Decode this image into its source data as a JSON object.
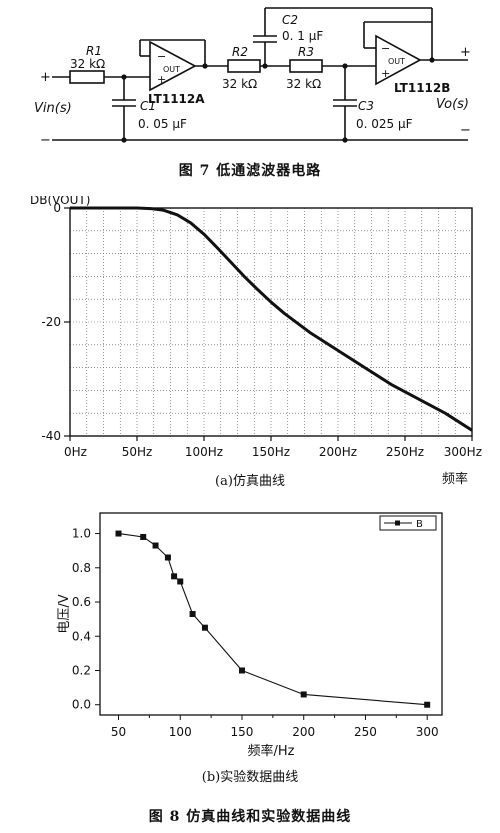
{
  "circuit": {
    "r1_name": "R1",
    "r1_value": "32 kΩ",
    "r2_name": "R2",
    "r2_value": "32 kΩ",
    "r3_name": "R3",
    "r3_value": "32 kΩ",
    "c1_name": "C1",
    "c1_value": "0. 05 μF",
    "c2_name": "C2",
    "c2_value": "0. 1 μF",
    "c3_name": "C3",
    "c3_value": "0. 025 μF",
    "opamp_a": "LT1112A",
    "opamp_b": "LT1112B",
    "out_label": "OUT",
    "vin": "Vin(s)",
    "vo": "Vo(s)",
    "plus": "+",
    "minus": "−"
  },
  "fig7_caption": "图 7   低通滤波器电路",
  "sim_caption": "(a)仿真曲线",
  "exp_caption": "(b)实验数据曲线",
  "fig8_caption": "图 8   仿真曲线和实验数据曲线",
  "chart_data": [
    {
      "type": "line",
      "ylabel": "DB(VOUT)",
      "xlabel": "频率",
      "x_ticks": [
        "0Hz",
        "50Hz",
        "100Hz",
        "150Hz",
        "200Hz",
        "250Hz",
        "300Hz"
      ],
      "y_ticks": [
        "0",
        "-20",
        "-40"
      ],
      "xlim": [
        0,
        300
      ],
      "ylim": [
        -40,
        0
      ],
      "grid": true,
      "series": [
        {
          "x": [
            0,
            25,
            50,
            60,
            70,
            80,
            90,
            100,
            110,
            120,
            130,
            140,
            150,
            160,
            180,
            200,
            220,
            240,
            260,
            280,
            300
          ],
          "y": [
            0,
            0,
            0,
            -0.1,
            -0.4,
            -1.2,
            -2.6,
            -4.6,
            -7.0,
            -9.5,
            -12.0,
            -14.3,
            -16.5,
            -18.5,
            -22.0,
            -25.0,
            -28.0,
            -31.0,
            -33.5,
            -36.0,
            -39.0
          ]
        }
      ]
    },
    {
      "type": "line",
      "xlabel": "频率/Hz",
      "ylabel": "电压/V",
      "legend": "B",
      "legend_position": "top-right",
      "x_ticks": [
        "50",
        "100",
        "150",
        "200",
        "250",
        "300"
      ],
      "y_ticks": [
        "0.0",
        "0.2",
        "0.4",
        "0.6",
        "0.8",
        "1.0"
      ],
      "xlim": [
        35,
        312
      ],
      "ylim": [
        -0.06,
        1.12
      ],
      "grid": false,
      "series": [
        {
          "name": "B",
          "x": [
            50,
            70,
            80,
            90,
            95,
            100,
            110,
            120,
            150,
            200,
            300
          ],
          "y": [
            1.0,
            0.98,
            0.93,
            0.86,
            0.75,
            0.72,
            0.53,
            0.45,
            0.2,
            0.06,
            0.0
          ]
        }
      ]
    }
  ]
}
